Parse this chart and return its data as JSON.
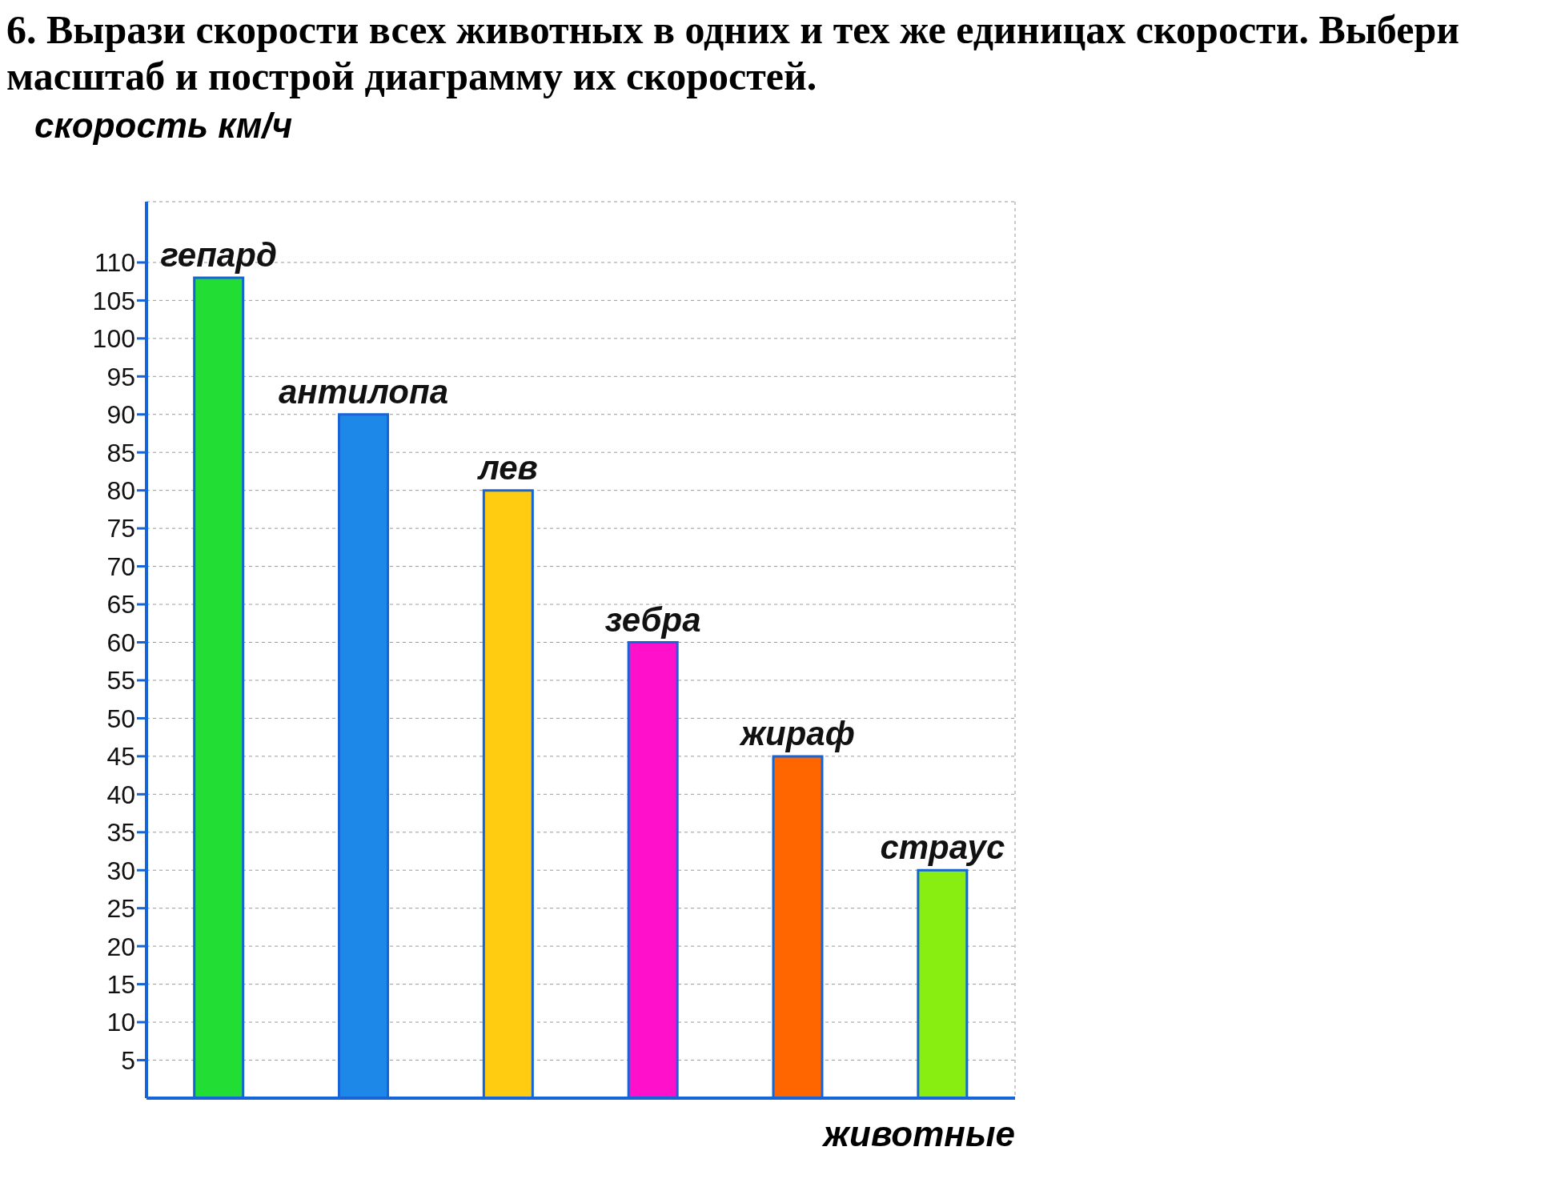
{
  "chart_data": {
    "type": "bar",
    "title": "6. Вырази скорости всех животных в одних и тех же единицах скорости. Выбери масштаб и построй диаграмму их скоростей.",
    "ylabel": "скорость км/ч",
    "xlabel": "животные",
    "categories": [
      "гепард",
      "антилопа",
      "лев",
      "зебра",
      "жираф",
      "страус"
    ],
    "values": [
      108,
      90,
      80,
      60,
      45,
      30
    ],
    "colors": [
      "#22dd33",
      "#1e88e8",
      "#ffcc11",
      "#ff11cc",
      "#ff6600",
      "#88ee11"
    ],
    "ylim": [
      0,
      118
    ],
    "yticks": [
      5,
      10,
      15,
      20,
      25,
      30,
      35,
      40,
      45,
      50,
      55,
      60,
      65,
      70,
      75,
      80,
      85,
      90,
      95,
      100,
      105,
      110
    ],
    "grid": true,
    "tick_labels": "y"
  }
}
